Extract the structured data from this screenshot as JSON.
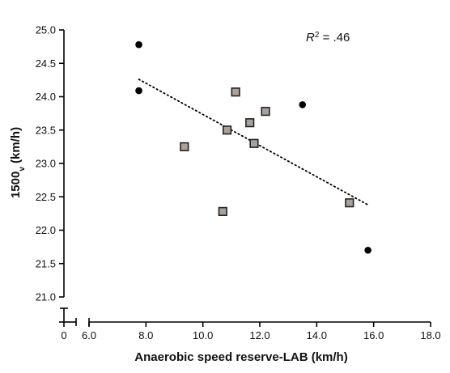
{
  "chart_data": {
    "type": "scatter",
    "title": "",
    "xlabel": "Anaerobic speed reserve-LAB (km/h)",
    "ylabel_main": "1500",
    "ylabel_sub": "v",
    "ylabel_unit": " (km/h)",
    "xlim": [
      6.0,
      18.0
    ],
    "ylim": [
      21.0,
      25.0
    ],
    "x_break_from": 0,
    "y_break_from": 0,
    "x_ticks": [
      "6.0",
      "8.0",
      "10.0",
      "12.0",
      "14.0",
      "16.0",
      "18.0"
    ],
    "x_tick_values": [
      6,
      8,
      10,
      12,
      14,
      16,
      18
    ],
    "x_zero_label": "0",
    "y_ticks": [
      "21.0",
      "21.5",
      "22.0",
      "22.5",
      "23.0",
      "23.5",
      "24.0",
      "24.5",
      "25.0"
    ],
    "y_tick_values": [
      21.0,
      21.5,
      22.0,
      22.5,
      23.0,
      23.5,
      24.0,
      24.5,
      25.0
    ],
    "y_zero_label": "0",
    "series": [
      {
        "marker": "circle",
        "color": "#000000",
        "points": [
          {
            "x": 7.75,
            "y": 24.78
          },
          {
            "x": 7.75,
            "y": 24.09
          },
          {
            "x": 13.5,
            "y": 23.88
          },
          {
            "x": 15.8,
            "y": 21.7
          }
        ]
      },
      {
        "marker": "square",
        "color": "#a9a19c",
        "edge": "#222222",
        "points": [
          {
            "x": 9.35,
            "y": 23.25
          },
          {
            "x": 10.7,
            "y": 22.28
          },
          {
            "x": 10.85,
            "y": 23.5
          },
          {
            "x": 11.15,
            "y": 24.07
          },
          {
            "x": 11.65,
            "y": 23.61
          },
          {
            "x": 11.8,
            "y": 23.3
          },
          {
            "x": 12.2,
            "y": 23.78
          },
          {
            "x": 15.15,
            "y": 22.41
          }
        ]
      }
    ],
    "trendline": {
      "style": "dotted",
      "x": [
        7.75,
        15.8
      ],
      "y": [
        24.26,
        22.38
      ]
    },
    "annotation": {
      "r": "R",
      "sup": "2",
      "text": " = .46"
    },
    "grid": false,
    "legend": "none"
  }
}
